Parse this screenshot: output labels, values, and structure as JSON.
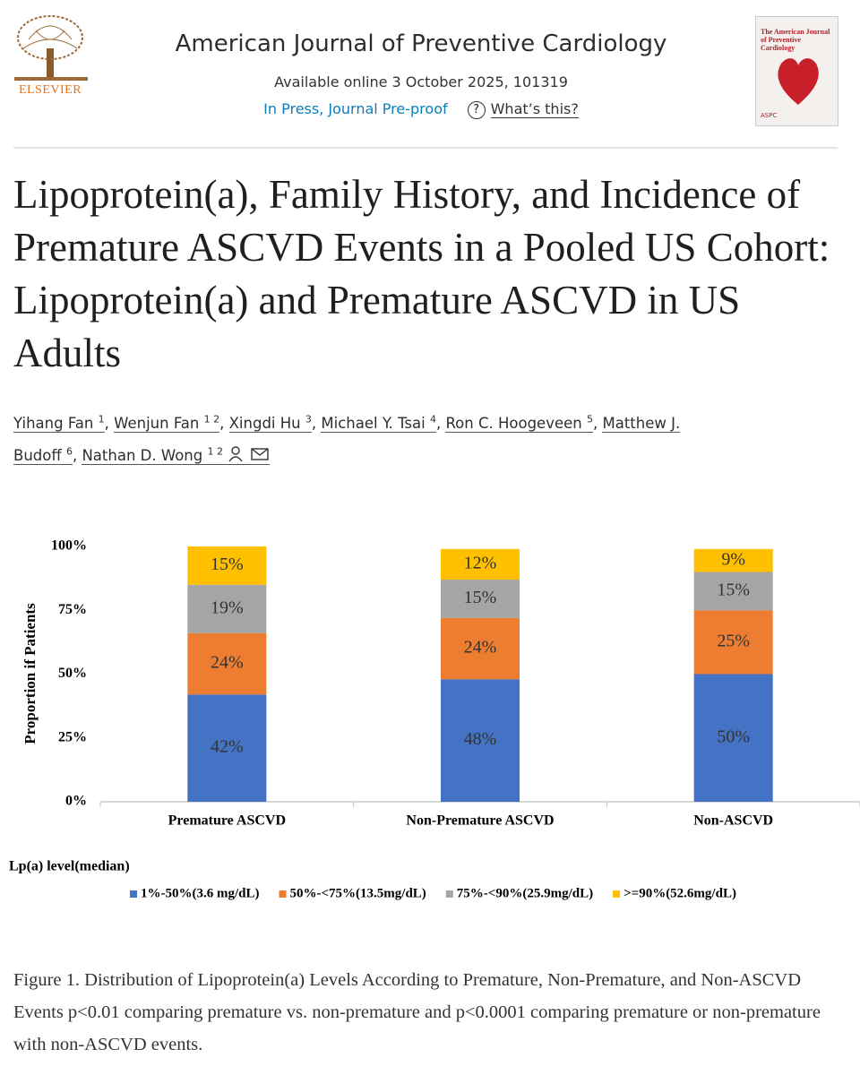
{
  "header": {
    "publisher": "ELSEVIER",
    "journal": "American Journal of Preventive Cardiology",
    "availability": "Available online 3 October 2025, 101319",
    "status": "In Press, Journal Pre-proof",
    "help_link": "What’s this?",
    "cover": {
      "title": "The American Journal of Preventive Cardiology",
      "badge": "ASPC"
    }
  },
  "article": {
    "title": "Lipoprotein(a), Family History, and Incidence of Premature ASCVD Events in a Pooled US Cohort: Lipoprotein(a) and Premature ASCVD in US Adults",
    "authors": [
      {
        "name": "Yihang Fan",
        "affiliations": "1"
      },
      {
        "name": "Wenjun Fan",
        "affiliations": "1 2"
      },
      {
        "name": "Xingdi Hu",
        "affiliations": "3"
      },
      {
        "name": "Michael Y. Tsai",
        "affiliations": "4"
      },
      {
        "name": "Ron C. Hoogeveen",
        "affiliations": "5"
      },
      {
        "name": "Matthew J. Budoff",
        "affiliations": "6"
      },
      {
        "name": "Nathan D. Wong",
        "affiliations": "1 2"
      }
    ],
    "caption": "Figure 1. Distribution of Lipoprotein(a) Levels According to Premature, Non-Premature, and Non-ASCVD Events p<0.01 comparing premature vs. non-premature and p<0.0001 comparing premature or non-premature with non-ASCVD events."
  },
  "chart_data": {
    "type": "stacked_bar",
    "y_label": "Proportion if Patients",
    "legend_title": "Lp(a) level(median)",
    "legend": "bottom",
    "categories": [
      "Premature ASCVD",
      "Non-Premature ASCVD",
      "Non-ASCVD"
    ],
    "series": [
      {
        "name": "1%-50%(3.6 mg/dL)",
        "color": "#4472c4",
        "values": [
          42,
          48,
          50
        ],
        "value_labels": [
          "42%",
          "48%",
          "50%"
        ]
      },
      {
        "name": "50%-<75%(13.5mg/dL)",
        "color": "#ed7d31",
        "values": [
          24,
          24,
          25
        ],
        "value_labels": [
          "24%",
          "24%",
          "25%"
        ]
      },
      {
        "name": "75%-<90%(25.9mg/dL)",
        "color": "#a5a5a5",
        "values": [
          19,
          15,
          15
        ],
        "value_labels": [
          "19%",
          "15%",
          "15%"
        ]
      },
      {
        "name": ">=90%(52.6mg/dL)",
        "color": "#ffc000",
        "values": [
          15,
          12,
          9
        ],
        "value_labels": [
          "15%",
          "12%",
          "9%"
        ]
      }
    ],
    "ylim": [
      0,
      100
    ],
    "yticks": [
      {
        "value": 0,
        "label": "0%"
      },
      {
        "value": 25,
        "label": "25%"
      },
      {
        "value": 50,
        "label": "50%"
      },
      {
        "value": 75,
        "label": "75%"
      },
      {
        "value": 100,
        "label": "100%"
      }
    ]
  }
}
